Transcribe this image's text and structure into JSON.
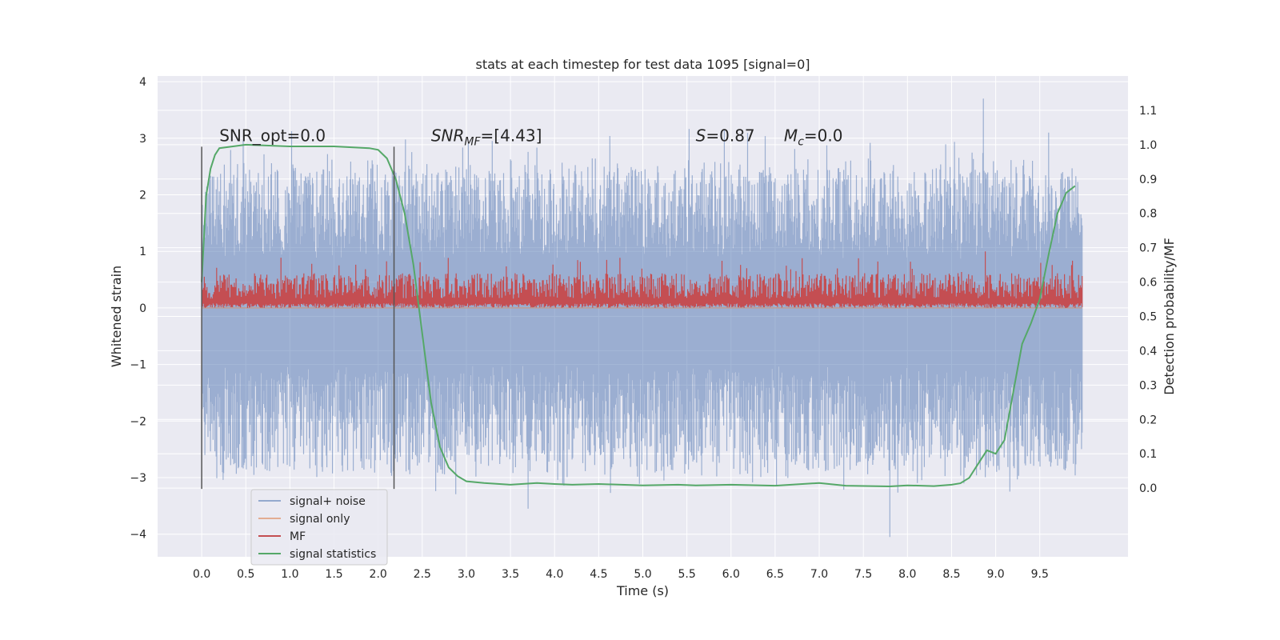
{
  "chart_data": {
    "type": "line",
    "title": "stats at each timestep for test data 1095 [signal=0]",
    "xlabel": "Time (s)",
    "ylabel_left": "Whitened strain",
    "ylabel_right": "Detection probability/MF",
    "xlim": [
      -0.5,
      10.5
    ],
    "ylim_left": [
      -4.4,
      4.1
    ],
    "ylim_right": [
      -0.2,
      1.2
    ],
    "x_ticks": [
      "0.0",
      "0.5",
      "1.0",
      "1.5",
      "2.0",
      "2.5",
      "3.0",
      "3.5",
      "4.0",
      "4.5",
      "5.0",
      "5.5",
      "6.0",
      "6.5",
      "7.0",
      "7.5",
      "8.0",
      "8.5",
      "9.0",
      "9.5"
    ],
    "y_left_ticks": [
      "4",
      "3",
      "2",
      "1",
      "0",
      "−1",
      "−2",
      "−3",
      "−4"
    ],
    "y_right_ticks": [
      "1.1",
      "1.0",
      "0.9",
      "0.8",
      "0.7",
      "0.6",
      "0.5",
      "0.4",
      "0.3",
      "0.2",
      "0.1",
      "0.0"
    ],
    "grid": true,
    "legend_position": "lower-left",
    "colors": {
      "noise": "#4c72b0",
      "signal_only": "#dd8452",
      "mf": "#c44e52",
      "statistic": "#55a868",
      "background": "#eaeaf2"
    },
    "annotations": [
      {
        "parts": [
          {
            "text": "SNR_opt=0.0",
            "italic": false
          }
        ]
      },
      {
        "parts": [
          {
            "text": "SNR",
            "italic": true
          },
          {
            "text": "MF",
            "italic": true,
            "sub": true
          },
          {
            "text": "=[4.43]",
            "italic": false
          }
        ]
      },
      {
        "parts": [
          {
            "text": "S",
            "italic": true
          },
          {
            "text": "=0.87",
            "italic": false
          }
        ]
      },
      {
        "parts": [
          {
            "text": "M",
            "italic": true
          },
          {
            "text": "c",
            "italic": true,
            "sub": true
          },
          {
            "text": "=0.0",
            "italic": false
          }
        ]
      }
    ],
    "series": [
      {
        "name": "signal+ noise",
        "axis": "left",
        "kind": "noise",
        "x_range": [
          0.0,
          9.98
        ],
        "envelope": [
          -2.8,
          2.4
        ],
        "extremes": [
          [
            3.7,
            -3.55
          ],
          [
            7.8,
            -4.05
          ],
          [
            8.86,
            3.7
          ],
          [
            9.6,
            3.1
          ]
        ]
      },
      {
        "name": "signal only",
        "axis": "left",
        "kind": "flat",
        "x": [
          0.0,
          9.98
        ],
        "y": [
          0.0,
          0.0
        ]
      },
      {
        "name": "MF",
        "axis": "left",
        "kind": "band",
        "x_range": [
          0.0,
          9.98
        ],
        "baseline": 0.0,
        "mean": 0.3,
        "peak": 1.0
      },
      {
        "name": "signal statistics",
        "axis": "right",
        "kind": "line",
        "x": [
          0.0,
          0.05,
          0.1,
          0.15,
          0.2,
          0.5,
          1.0,
          1.5,
          1.9,
          2.0,
          2.1,
          2.2,
          2.3,
          2.4,
          2.5,
          2.6,
          2.7,
          2.8,
          2.9,
          3.0,
          3.2,
          3.5,
          3.8,
          4.0,
          4.2,
          4.5,
          5.0,
          5.4,
          5.6,
          6.0,
          6.5,
          7.0,
          7.3,
          7.8,
          8.0,
          8.3,
          8.5,
          8.6,
          8.7,
          8.8,
          8.9,
          9.0,
          9.1,
          9.2,
          9.3,
          9.4,
          9.5,
          9.6,
          9.7,
          9.8,
          9.9
        ],
        "y": [
          0.6,
          0.85,
          0.93,
          0.97,
          0.99,
          1.0,
          0.995,
          0.995,
          0.99,
          0.985,
          0.96,
          0.9,
          0.8,
          0.65,
          0.45,
          0.25,
          0.12,
          0.06,
          0.035,
          0.02,
          0.015,
          0.01,
          0.015,
          0.012,
          0.01,
          0.012,
          0.008,
          0.01,
          0.008,
          0.01,
          0.007,
          0.015,
          0.007,
          0.005,
          0.008,
          0.006,
          0.01,
          0.014,
          0.03,
          0.07,
          0.11,
          0.1,
          0.14,
          0.28,
          0.42,
          0.48,
          0.55,
          0.68,
          0.8,
          0.86,
          0.88
        ]
      },
      {
        "name": "",
        "axis": "left",
        "kind": "vline",
        "x": 0.0,
        "y": [
          -3.2,
          2.85
        ]
      },
      {
        "name": "",
        "axis": "left",
        "kind": "vline",
        "x": 2.18,
        "y": [
          -3.2,
          2.85
        ]
      }
    ]
  }
}
